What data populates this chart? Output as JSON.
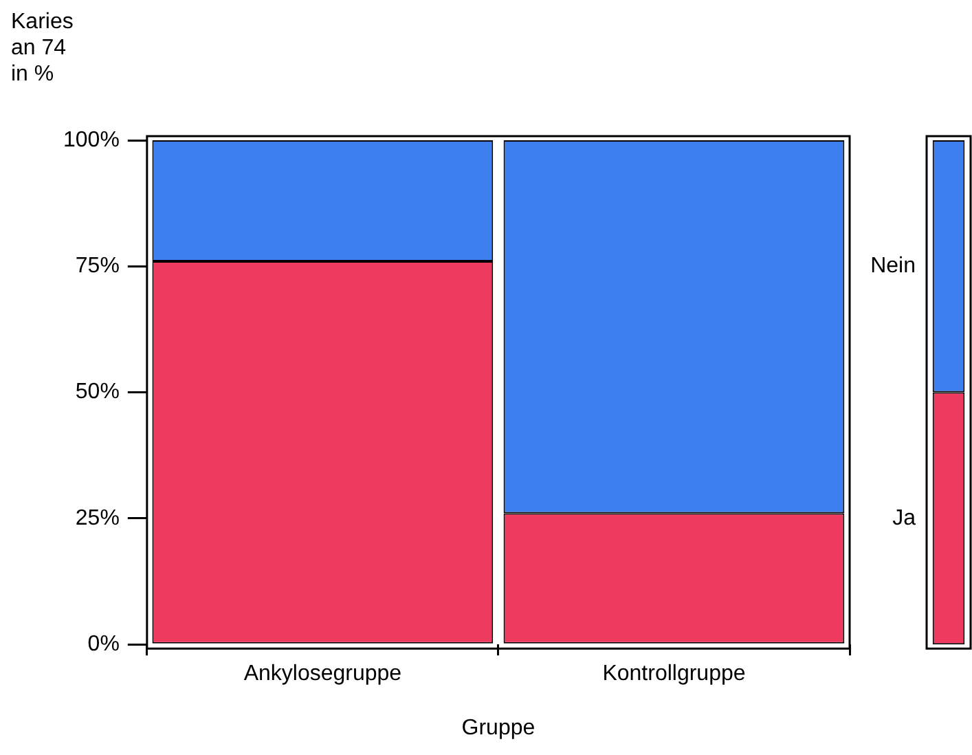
{
  "chart_data": [
    {
      "type": "bar",
      "stacked": true,
      "ylabel": "Karies\nan 74\nin %",
      "xlabel": "Gruppe",
      "categories": [
        "Ankylosegruppe",
        "Kontrollgruppe"
      ],
      "series": [
        {
          "color": "#ee3a5e",
          "values": [
            76,
            26
          ]
        },
        {
          "color": "#3d7fef",
          "values": [
            24,
            74
          ]
        }
      ],
      "ylim": [
        0,
        100
      ],
      "yticks": [
        {
          "value": 0,
          "label": "0%"
        },
        {
          "value": 25,
          "label": "25%"
        },
        {
          "value": 50,
          "label": "50%"
        },
        {
          "value": 75,
          "label": "75%"
        },
        {
          "value": 100,
          "label": "100%"
        }
      ],
      "grid": false,
      "legend": false
    },
    {
      "type": "bar",
      "stacked": true,
      "categories": [
        null
      ],
      "series": [
        {
          "name": "Ja",
          "color": "#ee3a5e",
          "values": [
            50
          ]
        },
        {
          "name": "Nein",
          "color": "#3d7fef",
          "values": [
            50
          ]
        }
      ],
      "ylim": [
        0,
        100
      ],
      "tick_labels": false,
      "grid": false,
      "legend": "left"
    }
  ]
}
